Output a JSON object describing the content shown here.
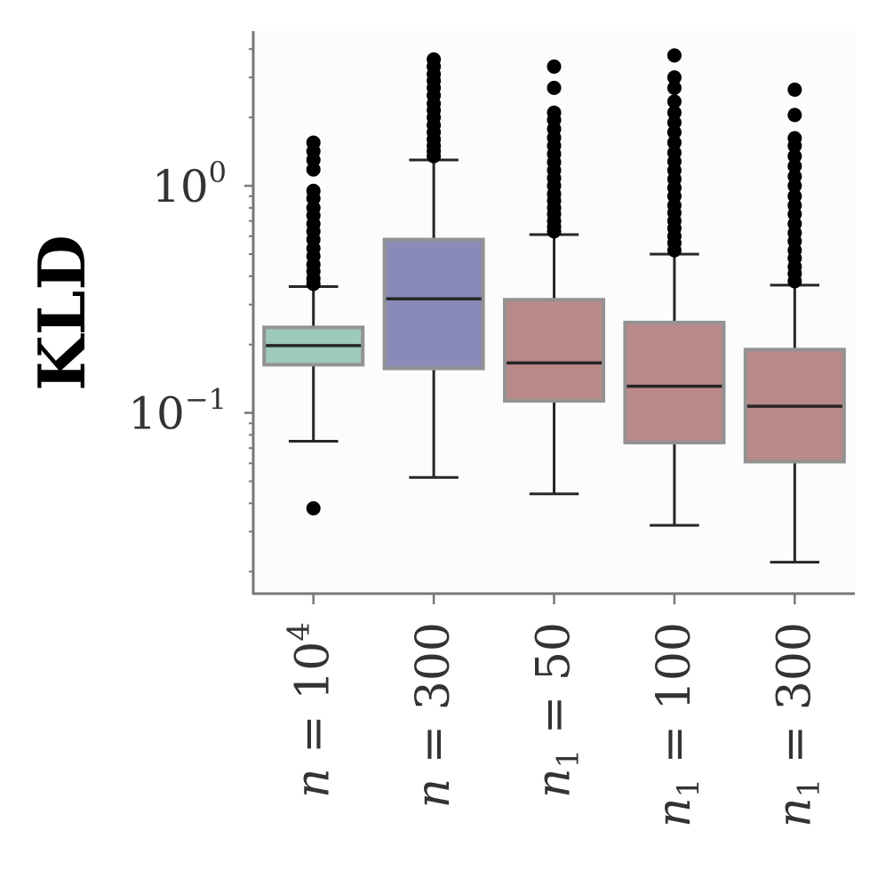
{
  "chart_data": {
    "type": "box",
    "ylabel": "KLD",
    "yscale": "log",
    "ylim": [
      0.016,
      4.8
    ],
    "yticks": [
      {
        "value": 0.1,
        "base": "10",
        "exp": "−1"
      },
      {
        "value": 1,
        "base": "10",
        "exp": "0"
      }
    ],
    "categories": [
      {
        "var": "n",
        "sub": "",
        "rhs": "10",
        "sup": "4"
      },
      {
        "var": "n",
        "sub": "",
        "rhs": "300",
        "sup": ""
      },
      {
        "var": "n",
        "sub": "1",
        "rhs": "50",
        "sup": ""
      },
      {
        "var": "n",
        "sub": "1",
        "rhs": "100",
        "sup": ""
      },
      {
        "var": "n",
        "sub": "1",
        "rhs": "300",
        "sup": ""
      }
    ],
    "boxes": [
      {
        "color": "#9ccbb9",
        "whislo": 0.075,
        "q1": 0.163,
        "med": 0.198,
        "q3": 0.238,
        "whishi": 0.36,
        "fliers": [
          0.038,
          0.37,
          0.39,
          0.42,
          0.45,
          0.49,
          0.53,
          0.58,
          0.63,
          0.68,
          0.74,
          0.8,
          0.88,
          0.95,
          1.18,
          1.3,
          1.42,
          1.55
        ]
      },
      {
        "color": "#8a8ab8",
        "whislo": 0.052,
        "q1": 0.157,
        "med": 0.318,
        "q3": 0.58,
        "whishi": 1.3,
        "fliers": [
          1.35,
          1.42,
          1.5,
          1.6,
          1.72,
          1.85,
          2.0,
          2.15,
          2.3,
          2.5,
          2.7,
          2.9,
          3.1,
          3.35,
          3.6
        ]
      },
      {
        "color": "#b98a89",
        "whislo": 0.044,
        "q1": 0.113,
        "med": 0.166,
        "q3": 0.315,
        "whishi": 0.61,
        "fliers": [
          0.63,
          0.66,
          0.7,
          0.75,
          0.8,
          0.86,
          0.92,
          1.0,
          1.08,
          1.17,
          1.27,
          1.38,
          1.5,
          1.63,
          1.78,
          1.95,
          2.1,
          2.7,
          3.35
        ]
      },
      {
        "color": "#b98a89",
        "whislo": 0.032,
        "q1": 0.074,
        "med": 0.131,
        "q3": 0.25,
        "whishi": 0.5,
        "fliers": [
          0.52,
          0.56,
          0.6,
          0.65,
          0.7,
          0.76,
          0.82,
          0.9,
          0.98,
          1.07,
          1.17,
          1.28,
          1.4,
          1.55,
          1.72,
          1.9,
          2.1,
          2.35,
          2.7,
          3.0,
          3.75
        ]
      },
      {
        "color": "#b98a89",
        "whislo": 0.022,
        "q1": 0.061,
        "med": 0.107,
        "q3": 0.19,
        "whishi": 0.365,
        "fliers": [
          0.38,
          0.41,
          0.44,
          0.48,
          0.52,
          0.57,
          0.62,
          0.68,
          0.75,
          0.82,
          0.9,
          1.0,
          1.1,
          1.22,
          1.35,
          1.5,
          1.62,
          2.05,
          2.65
        ]
      }
    ],
    "grid": false,
    "legend": "none"
  }
}
